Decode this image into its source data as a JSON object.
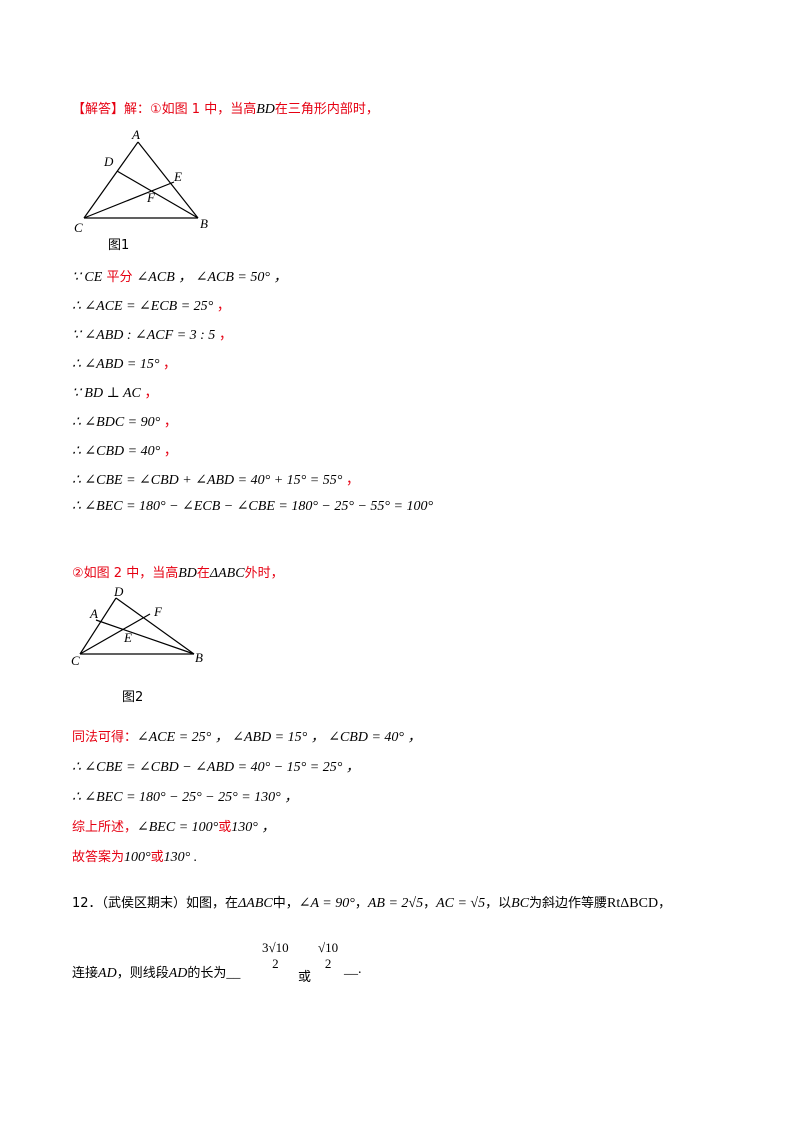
{
  "header": {
    "tag": "【解答】",
    "intro": "解：①如图 1 中，当高",
    "bd": "BD",
    "intro_end": "在三角形内部时，"
  },
  "figure1": {
    "labels": {
      "A": "A",
      "B": "B",
      "C": "C",
      "D": "D",
      "E": "E",
      "F": "F"
    },
    "caption": "图1"
  },
  "steps1": [
    {
      "sym": "∵",
      "pre": "CE",
      "cn": " 平分 ",
      "post": "∠ACB ， ∠ACB = 50° ，"
    },
    {
      "sym": "∴",
      "pre": "∠ACE = ∠ECB = 25°",
      "cn": "",
      "post": " ，"
    },
    {
      "sym": "∵",
      "pre": "∠ABD : ∠ACF = 3 : 5",
      "cn": "",
      "post": " ，"
    },
    {
      "sym": "∴",
      "pre": "∠ABD = 15°",
      "cn": "",
      "post": " ，"
    },
    {
      "sym": "∵",
      "pre": "BD ⊥ AC",
      "cn": "",
      "post": " ，"
    },
    {
      "sym": "∴",
      "pre": "∠BDC = 90°",
      "cn": "",
      "post": " ，"
    },
    {
      "sym": "∴",
      "pre": "∠CBD = 40°",
      "cn": "",
      "post": " ，"
    },
    {
      "sym": "∴",
      "pre": "∠CBE = ∠CBD + ∠ABD = 40° + 15° = 55°",
      "cn": "",
      "post": " ，"
    },
    {
      "sym": "∴",
      "pre": "∠BEC = 180° − ∠ECB − ∠CBE = 180° − 25° − 55° = 100°",
      "cn": "",
      "post": ""
    }
  ],
  "case2": {
    "intro": "②如图 2 中，当高",
    "bd": "BD",
    "mid": "在",
    "tri": "ΔABC",
    "end": "外时，"
  },
  "figure2": {
    "labels": {
      "A": "A",
      "B": "B",
      "C": "C",
      "D": "D",
      "E": "E",
      "F": "F"
    },
    "caption": "图2"
  },
  "steps2": {
    "similar_cn": "同法可得：",
    "similar_math": "∠ACE = 25° ， ∠ABD = 15° ， ∠CBD = 40° ，",
    "l2": "∴ ∠CBE = ∠CBD − ∠ABD = 40° − 15° = 25° ，",
    "l3": "∴ ∠BEC = 180° − 25° − 25° = 130° ，",
    "summary_cn": "综上所述，",
    "summary_math1": "∠BEC = 100°",
    "summary_or": "或",
    "summary_math2": "130° ，",
    "answer_cn": "故答案为",
    "answer_math1": "100°",
    "answer_or": "或",
    "answer_math2": "130° ."
  },
  "problem12": {
    "num": "12．",
    "source": "（武侯区期末）如图，在",
    "tri": "ΔABC",
    "t1": "中，",
    "a": "∠A = 90°",
    "t2": "，",
    "ab": "AB = 2√5",
    "t3": "，",
    "ac": "AC = √5",
    "t4": "，以",
    "bc": "BC",
    "t5": "为斜边作等腰",
    "rt": "RtΔBCD",
    "t6": "，",
    "l2a": "连接",
    "ad1": "AD",
    "l2b": "，则线段",
    "ad2": "AD",
    "l2c": "的长为",
    "blank1": "__",
    "frac1_num": "3√10",
    "frac1_den": "2",
    "or": "或",
    "frac2_num": "√10",
    "frac2_den": "2",
    "blank2": "__."
  }
}
